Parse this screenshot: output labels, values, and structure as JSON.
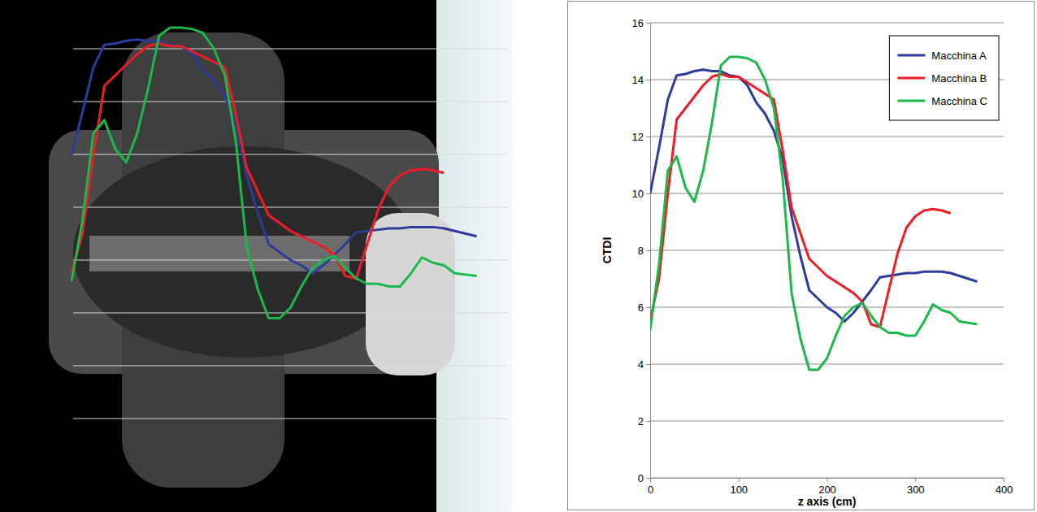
{
  "chart_data": {
    "type": "line",
    "x_label": "z axis (cm)",
    "y_label": "CTDI",
    "x": [
      0,
      10,
      20,
      30,
      40,
      50,
      60,
      70,
      80,
      90,
      100,
      110,
      120,
      130,
      140,
      150,
      160,
      170,
      180,
      190,
      200,
      210,
      220,
      230,
      240,
      250,
      260,
      270,
      280,
      290,
      300,
      310,
      320,
      330,
      340,
      350,
      360,
      370
    ],
    "series": [
      {
        "name": "Macchina A",
        "color": "#2e3b9b",
        "values": [
          10.0,
          11.6,
          13.3,
          14.15,
          14.2,
          14.3,
          14.35,
          14.3,
          14.3,
          14.15,
          14.1,
          13.8,
          13.2,
          12.8,
          12.2,
          11.2,
          9.2,
          7.8,
          6.6,
          6.3,
          6.0,
          5.8,
          5.5,
          5.8,
          6.2,
          6.6,
          7.05,
          7.1,
          7.15,
          7.2,
          7.2,
          7.25,
          7.25,
          7.25,
          7.2,
          7.1,
          7.0,
          6.9
        ]
      },
      {
        "name": "Macchina B",
        "color": "#ee1c25",
        "values": [
          5.5,
          7.0,
          10.0,
          12.6,
          13.0,
          13.4,
          13.8,
          14.1,
          14.2,
          14.1,
          14.1,
          13.9,
          13.7,
          13.5,
          13.3,
          11.5,
          9.5,
          8.6,
          7.7,
          7.4,
          7.1,
          6.9,
          6.7,
          6.5,
          6.2,
          5.4,
          5.3,
          6.6,
          7.9,
          8.8,
          9.2,
          9.4,
          9.45,
          9.4,
          9.3,
          null,
          null,
          null
        ]
      },
      {
        "name": "Macchina C",
        "color": "#1db84b",
        "values": [
          5.2,
          7.5,
          10.8,
          11.3,
          10.2,
          9.7,
          10.8,
          12.5,
          14.5,
          14.8,
          14.8,
          14.75,
          14.6,
          14.0,
          13.0,
          10.5,
          6.5,
          4.9,
          3.8,
          3.8,
          4.2,
          5.0,
          5.7,
          6.0,
          6.15,
          5.7,
          5.3,
          5.1,
          5.1,
          5.0,
          5.0,
          5.5,
          6.1,
          5.9,
          5.8,
          5.5,
          5.45,
          5.4
        ]
      }
    ],
    "xlim": [
      0,
      400
    ],
    "xticks": [
      0,
      100,
      200,
      300,
      400
    ],
    "ylim": [
      0,
      16
    ],
    "yticks": [
      0,
      2,
      4,
      6,
      8,
      10,
      12,
      14,
      16
    ],
    "grid": true,
    "legend": "top-right"
  }
}
